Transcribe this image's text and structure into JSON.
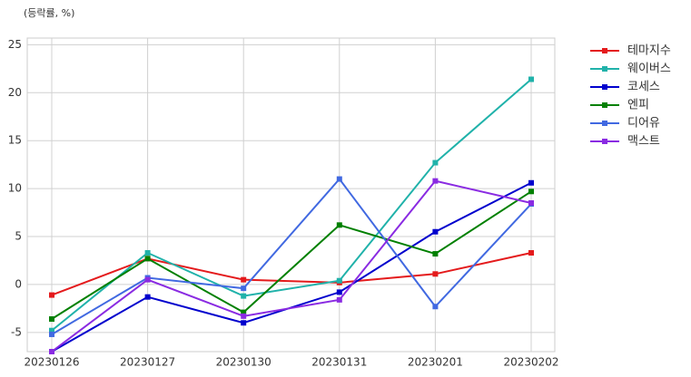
{
  "chart_data": {
    "type": "line",
    "subtitle": "(등락률, %)",
    "categories": [
      "20230126",
      "20230127",
      "20230130",
      "20230131",
      "20230201",
      "20230202"
    ],
    "series": [
      {
        "name": "테마지수",
        "color": "#e41a1c",
        "values": [
          -1.1,
          2.7,
          0.5,
          0.2,
          1.1,
          3.3
        ]
      },
      {
        "name": "웨이버스",
        "color": "#20b2aa",
        "values": [
          -4.8,
          3.3,
          -1.2,
          0.4,
          12.7,
          21.4
        ]
      },
      {
        "name": "코세스",
        "color": "#0000cd",
        "values": [
          -7.0,
          -1.3,
          -4.0,
          -0.8,
          5.5,
          10.6
        ]
      },
      {
        "name": "엔피",
        "color": "#008000",
        "values": [
          -3.6,
          2.7,
          -2.9,
          6.2,
          3.2,
          9.7
        ]
      },
      {
        "name": "디어유",
        "color": "#4169e1",
        "values": [
          -5.2,
          0.7,
          -0.4,
          11.0,
          -2.3,
          8.4
        ]
      },
      {
        "name": "맥스트",
        "color": "#8a2be2",
        "values": [
          -7.0,
          0.5,
          -3.3,
          -1.6,
          10.8,
          8.5
        ]
      }
    ],
    "ylim": [
      -7,
      25.7
    ],
    "yticks": [
      -5,
      0,
      5,
      10,
      15,
      20,
      25
    ],
    "grid": true
  }
}
